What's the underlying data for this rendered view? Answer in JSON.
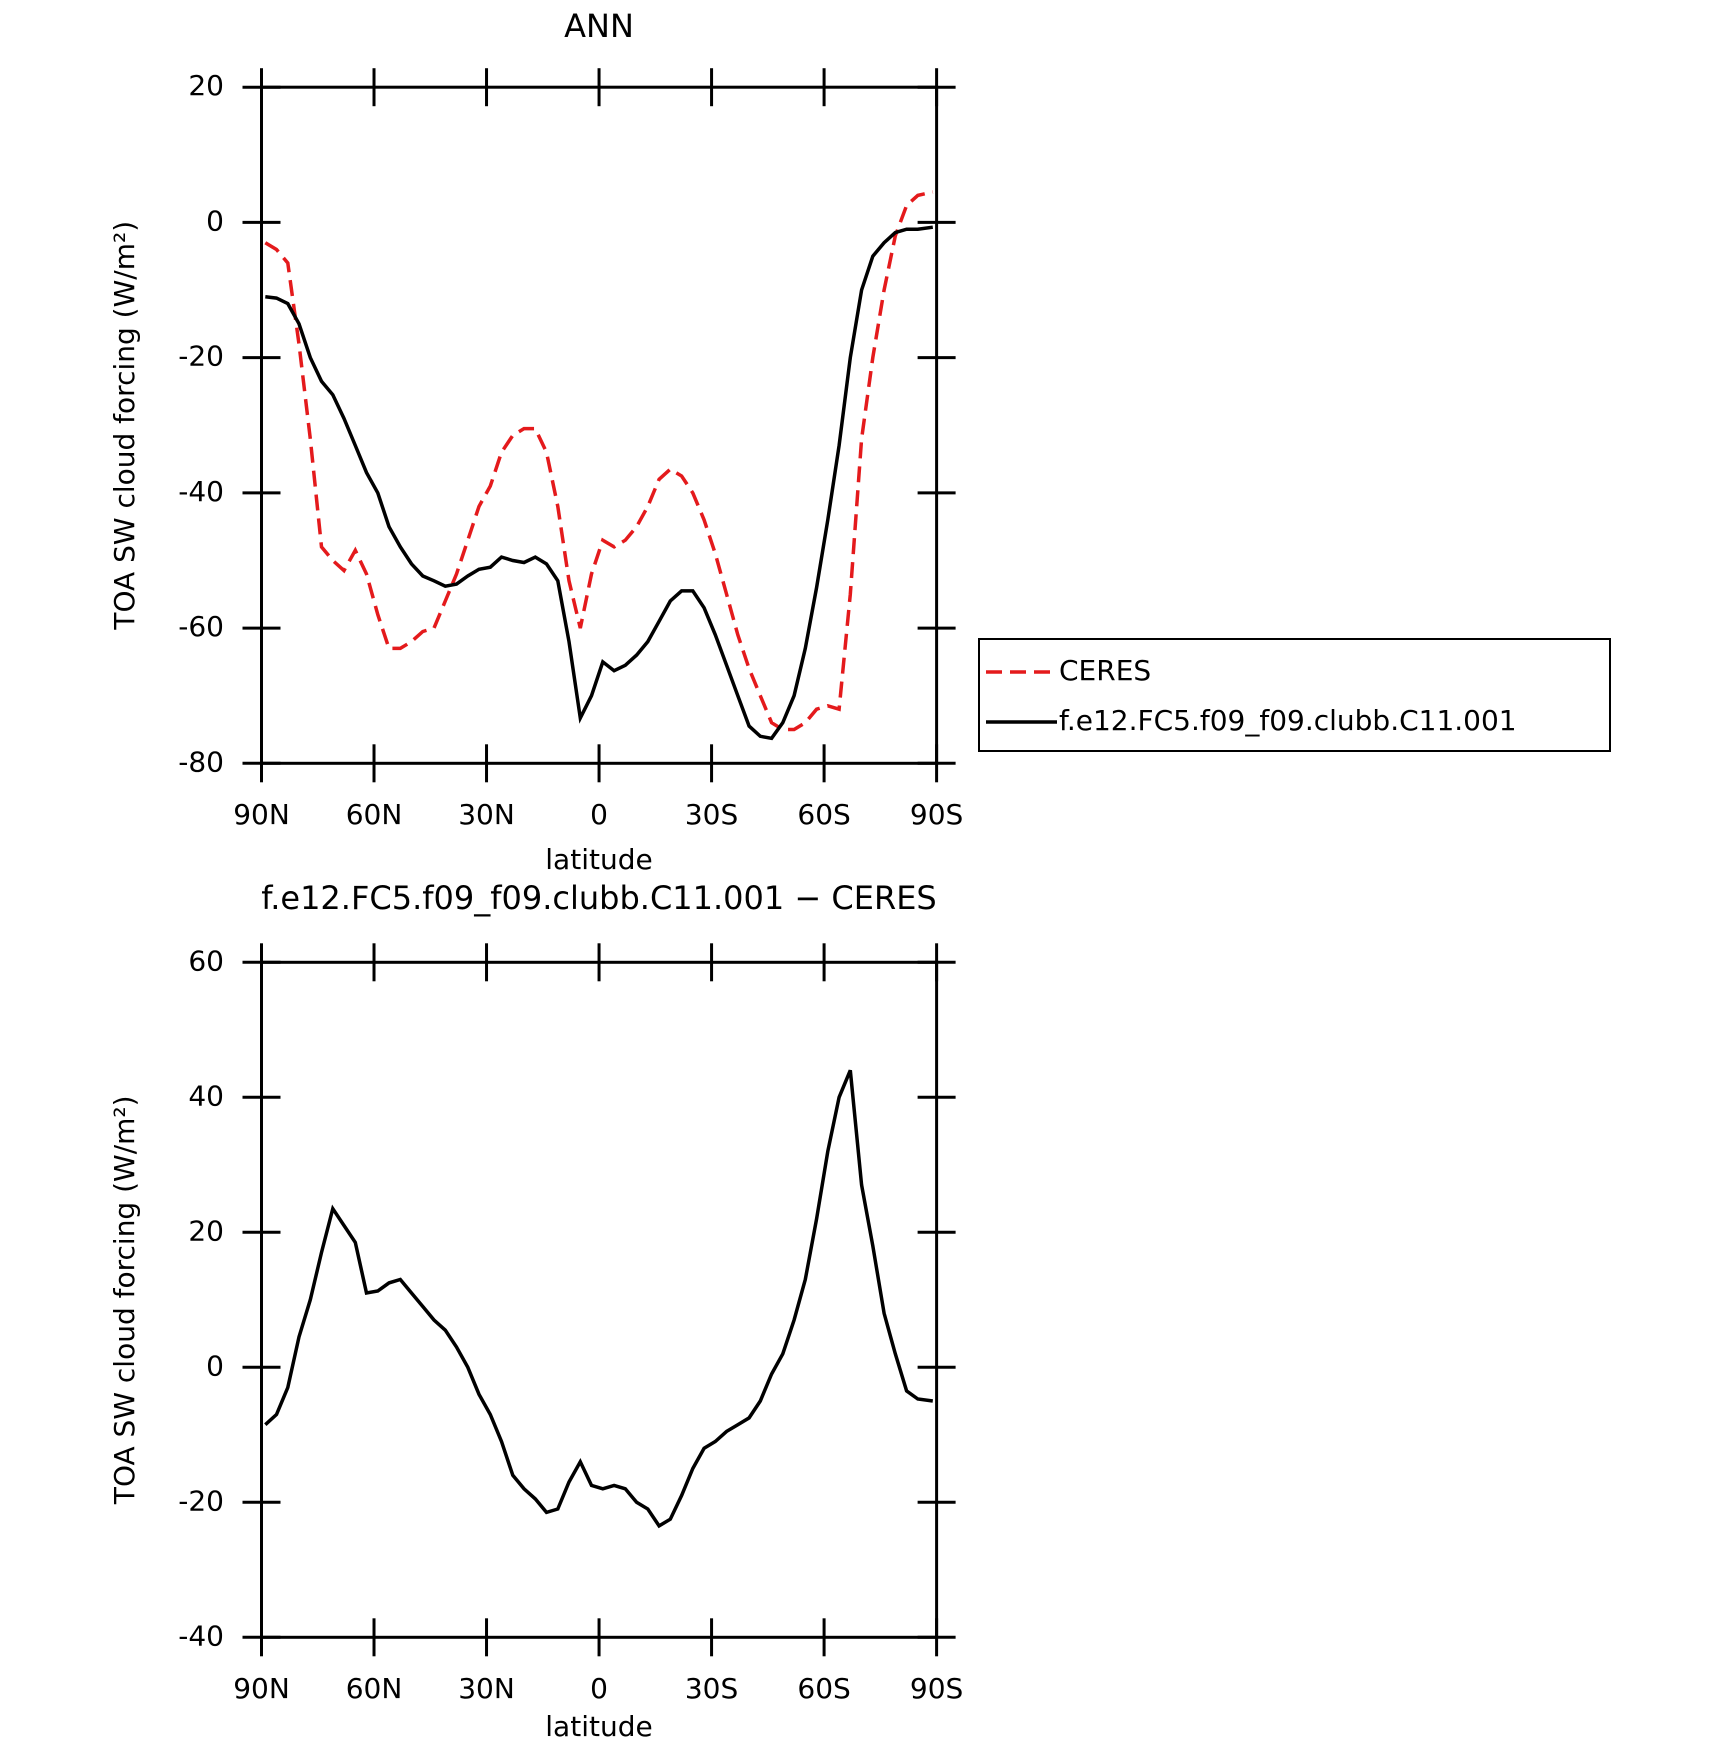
{
  "chart_data": [
    {
      "type": "line",
      "title": "ANN",
      "xlabel": "latitude",
      "ylabel": "TOA SW cloud forcing (W/m²)",
      "x": [
        89,
        86,
        83,
        80,
        77,
        74,
        71,
        68,
        65,
        62,
        59,
        56,
        53,
        50,
        47,
        44,
        41,
        38,
        35,
        32,
        29,
        26,
        23,
        20,
        17,
        14,
        11,
        8,
        5,
        2,
        -1,
        -4,
        -7,
        -10,
        -13,
        -16,
        -19,
        -22,
        -25,
        -28,
        -31,
        -34,
        -37,
        -40,
        -43,
        -46,
        -49,
        -52,
        -55,
        -58,
        -61,
        -64,
        -67,
        -70,
        -73,
        -76,
        -79,
        -82,
        -85,
        -89
      ],
      "xlim": [
        90,
        -90
      ],
      "xticks": [
        {
          "value": 90,
          "label": "90N"
        },
        {
          "value": 60,
          "label": "60N"
        },
        {
          "value": 30,
          "label": "30N"
        },
        0,
        {
          "value": -30,
          "label": "30S"
        },
        {
          "value": -60,
          "label": "60S"
        },
        {
          "value": -90,
          "label": "90S"
        }
      ],
      "ylim": [
        -80,
        20
      ],
      "yticks": [
        -80,
        -60,
        -40,
        -20,
        0,
        20
      ],
      "legend": "right",
      "series": [
        {
          "name": "CERES",
          "color": "#e41a1c",
          "style": "dashed",
          "values": [
            -3,
            -4,
            -6,
            -18,
            -32,
            -48,
            -50,
            -51.5,
            -48.5,
            -52,
            -58,
            -63,
            -63,
            -62,
            -60.5,
            -60,
            -56,
            -52,
            -47,
            -42,
            -39,
            -34,
            -31.5,
            -30.5,
            -30.5,
            -34,
            -42,
            -53,
            -60,
            -52,
            -47,
            -48,
            -47,
            -45,
            -42,
            -38,
            -36.5,
            -37.5,
            -40,
            -44,
            -49,
            -55,
            -61,
            -66,
            -70,
            -74,
            -75,
            -75,
            -74,
            -72,
            -71.5,
            -72,
            -55,
            -32,
            -20,
            -10,
            -2,
            2.5,
            4,
            4.5
          ]
        },
        {
          "name": "f.e12.FC5.f09_f09.clubb.C11.001",
          "color": "#000000",
          "style": "solid",
          "values": [
            -11,
            -11.2,
            -12,
            -15,
            -20,
            -23.5,
            -25.5,
            -29,
            -33,
            -37,
            -40,
            -45,
            -48,
            -50.5,
            -52.3,
            -53,
            -53.8,
            -53.5,
            -52.3,
            -51.3,
            -51,
            -49.5,
            -50,
            -50.3,
            -49.5,
            -50.5,
            -53,
            -62,
            -73.3,
            -70,
            -65,
            -66.3,
            -65.5,
            -64,
            -62,
            -59,
            -56,
            -54.5,
            -54.5,
            -57,
            -61,
            -65.5,
            -70,
            -74.5,
            -76,
            -76.3,
            -74,
            -70,
            -63,
            -54,
            -44,
            -33,
            -20,
            -10,
            -5,
            -3,
            -1.5,
            -1,
            -1,
            -0.7
          ]
        }
      ]
    },
    {
      "type": "line",
      "title": "f.e12.FC5.f09_f09.clubb.C11.001 − CERES",
      "xlabel": "latitude",
      "ylabel": "TOA SW cloud forcing (W/m²)",
      "x": [
        89,
        86,
        83,
        80,
        77,
        74,
        71,
        68,
        65,
        62,
        59,
        56,
        53,
        50,
        47,
        44,
        41,
        38,
        35,
        32,
        29,
        26,
        23,
        20,
        17,
        14,
        11,
        8,
        5,
        2,
        -1,
        -4,
        -7,
        -10,
        -13,
        -16,
        -19,
        -22,
        -25,
        -28,
        -31,
        -34,
        -37,
        -40,
        -43,
        -46,
        -49,
        -52,
        -55,
        -58,
        -61,
        -64,
        -67,
        -70,
        -73,
        -76,
        -79,
        -82,
        -85,
        -89
      ],
      "xlim": [
        90,
        -90
      ],
      "xticks": [
        {
          "value": 90,
          "label": "90N"
        },
        {
          "value": 60,
          "label": "60N"
        },
        {
          "value": 30,
          "label": "30N"
        },
        0,
        {
          "value": -30,
          "label": "30S"
        },
        {
          "value": -60,
          "label": "60S"
        },
        {
          "value": -90,
          "label": "90S"
        }
      ],
      "ylim": [
        -40,
        60
      ],
      "yticks": [
        -40,
        -20,
        0,
        20,
        40,
        60
      ],
      "series": [
        {
          "color": "#000000",
          "style": "solid",
          "values": [
            -8.5,
            -7,
            -3,
            4.5,
            10,
            17,
            23.5,
            21,
            18.5,
            11,
            11.3,
            12.5,
            13,
            11,
            9,
            7,
            5.5,
            3,
            0,
            -4,
            -7,
            -11,
            -16,
            -18,
            -19.5,
            -21.5,
            -21,
            -17,
            -14,
            -17.5,
            -18,
            -17.5,
            -18,
            -20,
            -21,
            -23.5,
            -22.5,
            -19,
            -15,
            -12,
            -11,
            -9.5,
            -8.5,
            -7.5,
            -5,
            -1,
            2,
            7,
            13,
            22,
            32,
            40,
            44,
            27,
            18,
            8,
            2,
            -3.5,
            -4.7,
            -5
          ]
        }
      ]
    }
  ]
}
